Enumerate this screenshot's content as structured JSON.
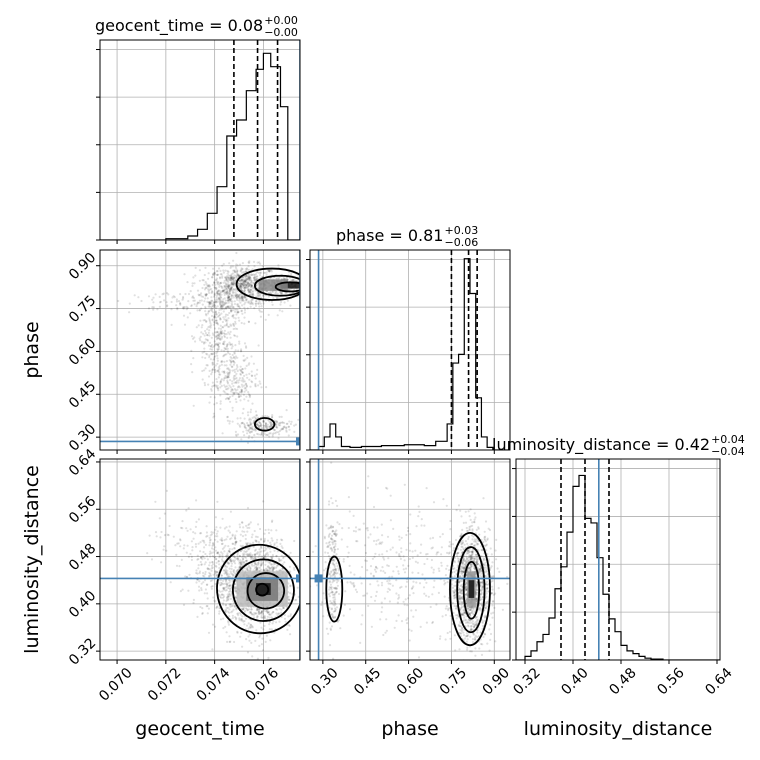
{
  "chart_data": {
    "type": "corner",
    "parameters": [
      {
        "name": "geocent_time",
        "range": [
          0.0693,
          0.0775
        ],
        "ticks": [
          0.07,
          0.072,
          0.074,
          0.076
        ],
        "tick_labels": [
          "0.070",
          "0.072",
          "0.074",
          "0.076"
        ]
      },
      {
        "name": "phase",
        "range": [
          0.255,
          0.955
        ],
        "ticks": [
          0.3,
          0.45,
          0.6,
          0.75,
          0.9
        ],
        "tick_labels": [
          "0.30",
          "0.45",
          "0.60",
          "0.75",
          "0.90"
        ]
      },
      {
        "name": "luminosity_distance",
        "range": [
          0.305,
          0.645
        ],
        "ticks": [
          0.32,
          0.4,
          0.48,
          0.56,
          0.64
        ],
        "tick_labels": [
          "0.32",
          "0.40",
          "0.48",
          "0.56",
          "0.64"
        ]
      }
    ],
    "titles": [
      {
        "param": "geocent_time",
        "median": "0.08",
        "plus": "+0.00",
        "minus": "−0.00"
      },
      {
        "param": "phase",
        "median": "0.81",
        "plus": "+0.03",
        "minus": "−0.06"
      },
      {
        "param": "luminosity_distance",
        "median": "0.42",
        "plus": "+0.04",
        "minus": "−0.04"
      }
    ],
    "truths": {
      "geocent_time": 0.0775,
      "phase": 0.285,
      "luminosity_distance": 0.443
    },
    "histograms": [
      {
        "param": "geocent_time",
        "bin_edges": [
          0.0693,
          0.0702,
          0.0711,
          0.072,
          0.0729,
          0.0733,
          0.0737,
          0.0741,
          0.0745,
          0.0749,
          0.0753,
          0.0757,
          0.076,
          0.0763,
          0.0767,
          0.077,
          0.0775
        ],
        "counts": [
          0,
          0,
          0,
          1,
          3,
          8,
          20,
          40,
          78,
          90,
          112,
          128,
          140,
          130,
          100,
          0
        ],
        "quantiles": [
          0.07479,
          0.07576,
          0.07658
        ],
        "max": 150
      },
      {
        "param": "phase",
        "bin_edges": [
          0.255,
          0.285,
          0.305,
          0.325,
          0.345,
          0.365,
          0.395,
          0.435,
          0.505,
          0.585,
          0.655,
          0.695,
          0.735,
          0.755,
          0.775,
          0.795,
          0.815,
          0.835,
          0.855,
          0.875,
          0.895,
          0.955
        ],
        "counts": [
          0,
          4,
          15,
          30,
          15,
          4,
          3,
          4,
          5,
          6,
          5,
          10,
          30,
          100,
          110,
          220,
          180,
          60,
          15,
          3,
          0
        ],
        "quantiles": [
          0.75,
          0.81,
          0.84
        ],
        "max": 230
      },
      {
        "param": "luminosity_distance",
        "bin_edges": [
          0.305,
          0.32,
          0.33,
          0.34,
          0.35,
          0.36,
          0.37,
          0.38,
          0.39,
          0.4,
          0.41,
          0.42,
          0.43,
          0.44,
          0.45,
          0.46,
          0.47,
          0.48,
          0.49,
          0.5,
          0.51,
          0.52,
          0.53,
          0.54,
          0.55,
          0.56,
          0.645
        ],
        "counts": [
          0,
          4,
          10,
          20,
          28,
          46,
          78,
          102,
          140,
          190,
          202,
          155,
          150,
          112,
          72,
          45,
          31,
          16,
          10,
          7,
          4,
          2,
          1,
          1,
          0,
          0
        ],
        "quantiles": [
          0.38,
          0.42,
          0.46
        ],
        "max": 220
      }
    ],
    "pairs": [
      {
        "x": "geocent_time",
        "y": "phase",
        "samples": [
          {
            "cx": 0.0752,
            "cy": 0.83,
            "sx": 0.0007,
            "sy": 0.035,
            "n": 650
          },
          {
            "cx": 0.0768,
            "cy": 0.83,
            "sx": 0.0004,
            "sy": 0.02,
            "n": 300
          },
          {
            "cx": 0.0745,
            "cy": 0.78,
            "sx": 0.0008,
            "sy": 0.05,
            "n": 300
          },
          {
            "cx": 0.0741,
            "cy": 0.65,
            "sx": 0.0004,
            "sy": 0.08,
            "n": 280
          },
          {
            "cx": 0.0748,
            "cy": 0.5,
            "sx": 0.0005,
            "sy": 0.06,
            "n": 260
          },
          {
            "cx": 0.076,
            "cy": 0.34,
            "sx": 0.0006,
            "sy": 0.02,
            "n": 240
          },
          {
            "cx": 0.0725,
            "cy": 0.77,
            "sx": 0.001,
            "sy": 0.02,
            "n": 80
          }
        ],
        "contours": [
          {
            "cx": 0.07635,
            "cy": 0.835,
            "rx": 0.00145,
            "ry": 0.055,
            "rot": 0
          },
          {
            "cx": 0.0767,
            "cy": 0.83,
            "rx": 0.00105,
            "ry": 0.035,
            "rot": 0
          },
          {
            "cx": 0.0771,
            "cy": 0.826,
            "rx": 0.0006,
            "ry": 0.016,
            "rot": 0
          },
          {
            "cx": 0.07605,
            "cy": 0.345,
            "rx": 0.0004,
            "ry": 0.022,
            "rot": 0
          }
        ],
        "blocks": [
          {
            "x": 0.0767,
            "y": 0.82,
            "w": 0.0008,
            "h": 0.024,
            "shade": "#111111"
          },
          {
            "x": 0.0758,
            "y": 0.812,
            "w": 0.0012,
            "h": 0.04,
            "shade": "#888888"
          }
        ]
      },
      {
        "x": "geocent_time",
        "y": "luminosity_distance",
        "samples": [
          {
            "cx": 0.0757,
            "cy": 0.43,
            "sx": 0.0008,
            "sy": 0.04,
            "n": 1300
          },
          {
            "cx": 0.0745,
            "cy": 0.46,
            "sx": 0.0009,
            "sy": 0.035,
            "n": 400
          },
          {
            "cx": 0.0728,
            "cy": 0.52,
            "sx": 0.0009,
            "sy": 0.03,
            "n": 60
          }
        ],
        "contours": [
          {
            "cx": 0.07585,
            "cy": 0.425,
            "rx": 0.00175,
            "ry": 0.075,
            "rot": -12
          },
          {
            "cx": 0.076,
            "cy": 0.423,
            "rx": 0.00125,
            "ry": 0.052,
            "rot": -12
          },
          {
            "cx": 0.0761,
            "cy": 0.422,
            "rx": 0.00075,
            "ry": 0.03,
            "rot": -10
          },
          {
            "cx": 0.07595,
            "cy": 0.424,
            "rx": 0.00025,
            "ry": 0.01,
            "rot": 0
          }
        ],
        "blocks": [
          {
            "x": 0.0749,
            "y": 0.395,
            "w": 0.0021,
            "h": 0.06,
            "shade": "#bbbbbb"
          },
          {
            "x": 0.0753,
            "y": 0.405,
            "w": 0.0013,
            "h": 0.04,
            "shade": "#777777"
          },
          {
            "x": 0.0757,
            "y": 0.415,
            "w": 0.0006,
            "h": 0.02,
            "shade": "#111111"
          }
        ]
      },
      {
        "x": "phase",
        "y": "luminosity_distance",
        "samples": [
          {
            "cx": 0.82,
            "cy": 0.43,
            "sx": 0.035,
            "sy": 0.045,
            "n": 1300
          },
          {
            "cx": 0.335,
            "cy": 0.45,
            "sx": 0.012,
            "sy": 0.05,
            "n": 200
          },
          {
            "cx": 0.55,
            "cy": 0.46,
            "sx": 0.14,
            "sy": 0.06,
            "n": 350
          }
        ],
        "contours": [
          {
            "cx": 0.815,
            "cy": 0.425,
            "rx": 0.07,
            "ry": 0.095,
            "rot": 0
          },
          {
            "cx": 0.818,
            "cy": 0.424,
            "rx": 0.048,
            "ry": 0.072,
            "rot": 0
          },
          {
            "cx": 0.82,
            "cy": 0.423,
            "rx": 0.027,
            "ry": 0.048,
            "rot": 0
          },
          {
            "cx": 0.34,
            "cy": 0.425,
            "rx": 0.028,
            "ry": 0.055,
            "rot": 0
          }
        ],
        "blocks": [
          {
            "x": 0.805,
            "y": 0.395,
            "w": 0.03,
            "h": 0.06,
            "shade": "#999999"
          },
          {
            "x": 0.81,
            "y": 0.41,
            "w": 0.02,
            "h": 0.03,
            "shade": "#111111"
          }
        ]
      }
    ],
    "sample_color": "#000000",
    "hist_color": "#000000",
    "truth_color": "#4682b4",
    "grid": true
  }
}
